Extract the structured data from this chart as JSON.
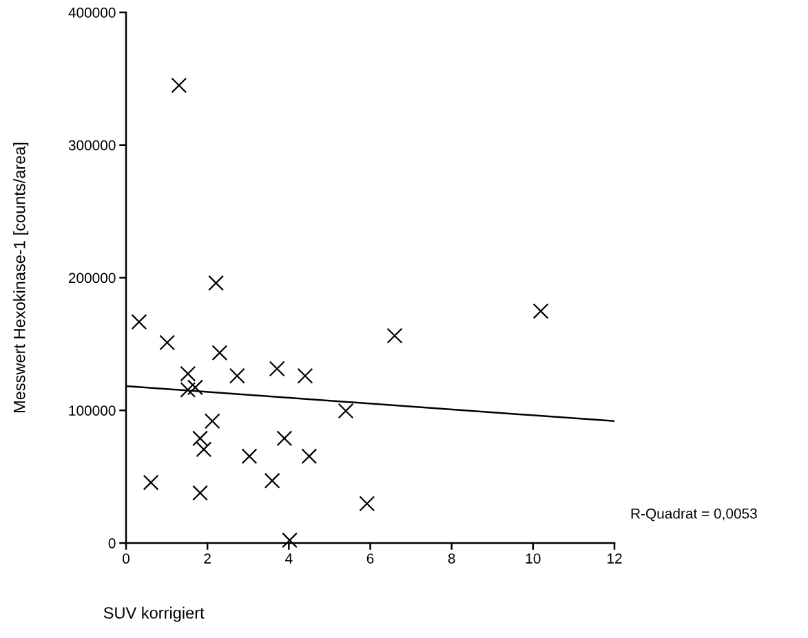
{
  "chart_data": {
    "type": "scatter",
    "xlabel": "SUV korrigiert",
    "ylabel": "Messwert Hexokinase-1 [counts/area]",
    "annotations": [
      "R-Quadrat = 0,0053"
    ],
    "xlim": [
      0,
      12
    ],
    "xticks": [
      0,
      2,
      4,
      6,
      8,
      10,
      12
    ],
    "ylim": [
      0,
      400000
    ],
    "yticks": [
      0,
      100000,
      200000,
      300000,
      400000
    ],
    "grid": false,
    "legend": false,
    "series": [
      {
        "marker": "cross",
        "color": "#000000",
        "x": [
          1.3,
          0.32,
          1.01,
          2.21,
          2.3,
          1.52,
          1.52,
          1.7,
          2.73,
          3.71,
          4.4,
          5.4,
          2.12,
          1.82,
          1.91,
          3.89,
          3.03,
          4.5,
          0.61,
          3.59,
          1.82,
          4.02,
          10.19,
          6.6,
          5.92
        ],
        "values": [
          345000,
          166700,
          151100,
          196000,
          143400,
          127600,
          115500,
          117300,
          126000,
          131400,
          126000,
          99600,
          91900,
          78900,
          70600,
          78900,
          65400,
          65400,
          45600,
          47000,
          37800,
          2100,
          174800,
          156300,
          29700
        ]
      },
      {
        "type": "line",
        "color": "#000000",
        "line_style": "solid",
        "x": [
          0,
          12
        ],
        "values": [
          118300,
          91900
        ]
      }
    ]
  }
}
